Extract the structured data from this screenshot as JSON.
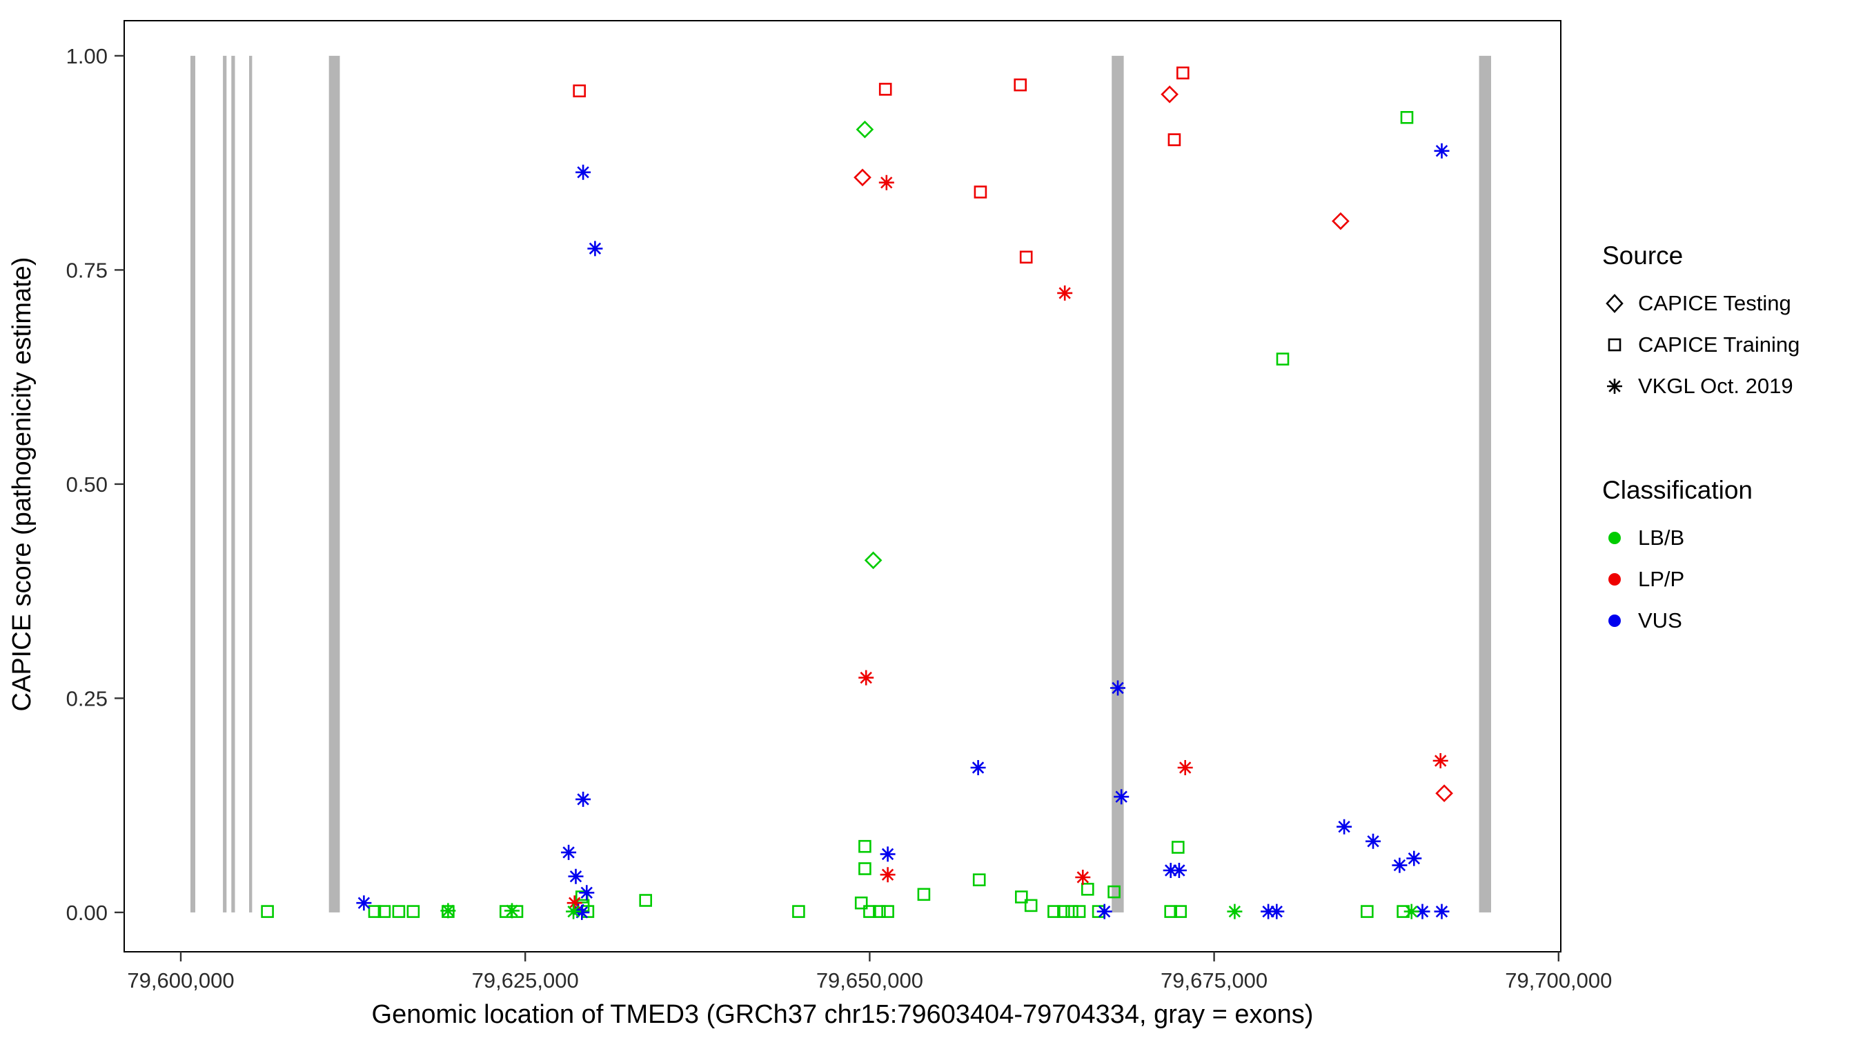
{
  "axes": {
    "x_label": "Genomic location of TMED3 (GRCh37 chr15:79603404-79704334, gray = exons)",
    "y_label": "CAPICE score (pathogenicity estimate)"
  },
  "legend": {
    "source": {
      "title": "Source",
      "items": [
        {
          "label": "CAPICE Testing",
          "shape": "diamond"
        },
        {
          "label": "CAPICE Training",
          "shape": "square"
        },
        {
          "label": "VKGL Oct. 2019",
          "shape": "asterisk"
        }
      ]
    },
    "classification": {
      "title": "Classification",
      "items": [
        {
          "label": "LB/B",
          "color": "#00CC00"
        },
        {
          "label": "LP/P",
          "color": "#EE0000"
        },
        {
          "label": "VUS",
          "color": "#0000EE"
        }
      ]
    }
  },
  "chart_data": {
    "type": "scatter",
    "title": "",
    "xlabel": "Genomic location of TMED3 (GRCh37 chr15:79603404-79704334, gray = exons)",
    "ylabel": "CAPICE score (pathogenicity estimate)",
    "xlim": [
      79595893,
      79700160
    ],
    "ylim": [
      -0.046,
      1.041
    ],
    "grid": false,
    "legend_position": "right",
    "x_ticks": [
      {
        "value": 79600000,
        "label": "79,600,000"
      },
      {
        "value": 79625000,
        "label": "79,625,000"
      },
      {
        "value": 79650000,
        "label": "79,650,000"
      },
      {
        "value": 79675000,
        "label": "79,675,000"
      },
      {
        "value": 79700000,
        "label": "79,700,000"
      }
    ],
    "y_ticks": [
      {
        "value": 0.0,
        "label": "0.00"
      },
      {
        "value": 0.25,
        "label": "0.25"
      },
      {
        "value": 0.5,
        "label": "0.50"
      },
      {
        "value": 0.75,
        "label": "0.75"
      },
      {
        "value": 1.0,
        "label": "1.00"
      }
    ],
    "exon_color": "#b5b5b5",
    "exons": [
      [
        79600700,
        79601050
      ],
      [
        79603060,
        79603320
      ],
      [
        79603670,
        79603930
      ],
      [
        79604960,
        79605180
      ],
      [
        79610750,
        79611540
      ],
      [
        79667570,
        79668440
      ],
      [
        79694230,
        79695100
      ]
    ],
    "shape_by_source": {
      "CAPICE Testing": "diamond",
      "CAPICE Training": "square",
      "VKGL Oct. 2019": "asterisk"
    },
    "color_by_class": {
      "LB/B": "#00CC00",
      "LP/P": "#EE0000",
      "VUS": "#0000EE"
    },
    "points": [
      {
        "x": 79649650,
        "y": 0.914,
        "source": "CAPICE Testing",
        "cls": "LB/B"
      },
      {
        "x": 79650260,
        "y": 0.411,
        "source": "CAPICE Testing",
        "cls": "LB/B"
      },
      {
        "x": 79649480,
        "y": 0.858,
        "source": "CAPICE Testing",
        "cls": "LP/P"
      },
      {
        "x": 79671770,
        "y": 0.955,
        "source": "CAPICE Testing",
        "cls": "LP/P"
      },
      {
        "x": 79684180,
        "y": 0.807,
        "source": "CAPICE Testing",
        "cls": "LP/P"
      },
      {
        "x": 79691700,
        "y": 0.139,
        "source": "CAPICE Testing",
        "cls": "LP/P"
      },
      {
        "x": 79628930,
        "y": 0.959,
        "source": "CAPICE Training",
        "cls": "LP/P"
      },
      {
        "x": 79651140,
        "y": 0.961,
        "source": "CAPICE Training",
        "cls": "LP/P"
      },
      {
        "x": 79658040,
        "y": 0.841,
        "source": "CAPICE Training",
        "cls": "LP/P"
      },
      {
        "x": 79660930,
        "y": 0.966,
        "source": "CAPICE Training",
        "cls": "LP/P"
      },
      {
        "x": 79661360,
        "y": 0.765,
        "source": "CAPICE Training",
        "cls": "LP/P"
      },
      {
        "x": 79672110,
        "y": 0.902,
        "source": "CAPICE Training",
        "cls": "LP/P"
      },
      {
        "x": 79672730,
        "y": 0.98,
        "source": "CAPICE Training",
        "cls": "LP/P"
      },
      {
        "x": 79679980,
        "y": 0.646,
        "source": "CAPICE Training",
        "cls": "LB/B"
      },
      {
        "x": 79688990,
        "y": 0.928,
        "source": "CAPICE Training",
        "cls": "LB/B"
      },
      {
        "x": 79606290,
        "y": 0.001,
        "source": "CAPICE Training",
        "cls": "LB/B"
      },
      {
        "x": 79614070,
        "y": 0.001,
        "source": "CAPICE Training",
        "cls": "LB/B"
      },
      {
        "x": 79614770,
        "y": 0.001,
        "source": "CAPICE Training",
        "cls": "LB/B"
      },
      {
        "x": 79615820,
        "y": 0.001,
        "source": "CAPICE Training",
        "cls": "LB/B"
      },
      {
        "x": 79616870,
        "y": 0.001,
        "source": "CAPICE Training",
        "cls": "LB/B"
      },
      {
        "x": 79619400,
        "y": 0.001,
        "source": "CAPICE Training",
        "cls": "LB/B"
      },
      {
        "x": 79623600,
        "y": 0.001,
        "source": "CAPICE Training",
        "cls": "LB/B"
      },
      {
        "x": 79624390,
        "y": 0.001,
        "source": "CAPICE Training",
        "cls": "LB/B"
      },
      {
        "x": 79629110,
        "y": 0.018,
        "source": "CAPICE Training",
        "cls": "LB/B"
      },
      {
        "x": 79629200,
        "y": 0.008,
        "source": "CAPICE Training",
        "cls": "LB/B"
      },
      {
        "x": 79629540,
        "y": 0.001,
        "source": "CAPICE Training",
        "cls": "LB/B"
      },
      {
        "x": 79633740,
        "y": 0.014,
        "source": "CAPICE Training",
        "cls": "LB/B"
      },
      {
        "x": 79644840,
        "y": 0.001,
        "source": "CAPICE Training",
        "cls": "LB/B"
      },
      {
        "x": 79649390,
        "y": 0.011,
        "source": "CAPICE Training",
        "cls": "LB/B"
      },
      {
        "x": 79649650,
        "y": 0.077,
        "source": "CAPICE Training",
        "cls": "LB/B"
      },
      {
        "x": 79649650,
        "y": 0.051,
        "source": "CAPICE Training",
        "cls": "LB/B"
      },
      {
        "x": 79650000,
        "y": 0.001,
        "source": "CAPICE Training",
        "cls": "LB/B"
      },
      {
        "x": 79650700,
        "y": 0.001,
        "source": "CAPICE Training",
        "cls": "LB/B"
      },
      {
        "x": 79651310,
        "y": 0.001,
        "source": "CAPICE Training",
        "cls": "LB/B"
      },
      {
        "x": 79653930,
        "y": 0.021,
        "source": "CAPICE Training",
        "cls": "LB/B"
      },
      {
        "x": 79657950,
        "y": 0.038,
        "source": "CAPICE Training",
        "cls": "LB/B"
      },
      {
        "x": 79661010,
        "y": 0.018,
        "source": "CAPICE Training",
        "cls": "LB/B"
      },
      {
        "x": 79661710,
        "y": 0.008,
        "source": "CAPICE Training",
        "cls": "LB/B"
      },
      {
        "x": 79663370,
        "y": 0.001,
        "source": "CAPICE Training",
        "cls": "LB/B"
      },
      {
        "x": 79664070,
        "y": 0.001,
        "source": "CAPICE Training",
        "cls": "LB/B"
      },
      {
        "x": 79664680,
        "y": 0.001,
        "source": "CAPICE Training",
        "cls": "LB/B"
      },
      {
        "x": 79665210,
        "y": 0.001,
        "source": "CAPICE Training",
        "cls": "LB/B"
      },
      {
        "x": 79665820,
        "y": 0.027,
        "source": "CAPICE Training",
        "cls": "LB/B"
      },
      {
        "x": 79666610,
        "y": 0.001,
        "source": "CAPICE Training",
        "cls": "LB/B"
      },
      {
        "x": 79667740,
        "y": 0.024,
        "source": "CAPICE Training",
        "cls": "LB/B"
      },
      {
        "x": 79671850,
        "y": 0.001,
        "source": "CAPICE Training",
        "cls": "LB/B"
      },
      {
        "x": 79672380,
        "y": 0.076,
        "source": "CAPICE Training",
        "cls": "LB/B"
      },
      {
        "x": 79672550,
        "y": 0.001,
        "source": "CAPICE Training",
        "cls": "LB/B"
      },
      {
        "x": 79686100,
        "y": 0.001,
        "source": "CAPICE Training",
        "cls": "LB/B"
      },
      {
        "x": 79688720,
        "y": 0.001,
        "source": "CAPICE Training",
        "cls": "LB/B"
      },
      {
        "x": 79629200,
        "y": 0.864,
        "source": "VKGL Oct. 2019",
        "cls": "VUS"
      },
      {
        "x": 79630070,
        "y": 0.775,
        "source": "VKGL Oct. 2019",
        "cls": "VUS"
      },
      {
        "x": 79691520,
        "y": 0.889,
        "source": "VKGL Oct. 2019",
        "cls": "VUS"
      },
      {
        "x": 79668010,
        "y": 0.262,
        "source": "VKGL Oct. 2019",
        "cls": "VUS"
      },
      {
        "x": 79657870,
        "y": 0.169,
        "source": "VKGL Oct. 2019",
        "cls": "VUS"
      },
      {
        "x": 79668270,
        "y": 0.135,
        "source": "VKGL Oct. 2019",
        "cls": "VUS"
      },
      {
        "x": 79629200,
        "y": 0.132,
        "source": "VKGL Oct. 2019",
        "cls": "VUS"
      },
      {
        "x": 79684440,
        "y": 0.1,
        "source": "VKGL Oct. 2019",
        "cls": "VUS"
      },
      {
        "x": 79686540,
        "y": 0.083,
        "source": "VKGL Oct. 2019",
        "cls": "VUS"
      },
      {
        "x": 79628150,
        "y": 0.07,
        "source": "VKGL Oct. 2019",
        "cls": "VUS"
      },
      {
        "x": 79628670,
        "y": 0.042,
        "source": "VKGL Oct. 2019",
        "cls": "VUS"
      },
      {
        "x": 79651310,
        "y": 0.068,
        "source": "VKGL Oct. 2019",
        "cls": "VUS"
      },
      {
        "x": 79671850,
        "y": 0.049,
        "source": "VKGL Oct. 2019",
        "cls": "VUS"
      },
      {
        "x": 79672460,
        "y": 0.049,
        "source": "VKGL Oct. 2019",
        "cls": "VUS"
      },
      {
        "x": 79689510,
        "y": 0.063,
        "source": "VKGL Oct. 2019",
        "cls": "VUS"
      },
      {
        "x": 79688460,
        "y": 0.055,
        "source": "VKGL Oct. 2019",
        "cls": "VUS"
      },
      {
        "x": 79613290,
        "y": 0.011,
        "source": "VKGL Oct. 2019",
        "cls": "VUS"
      },
      {
        "x": 79629460,
        "y": 0.023,
        "source": "VKGL Oct. 2019",
        "cls": "VUS"
      },
      {
        "x": 79628850,
        "y": 0.003,
        "source": "VKGL Oct. 2019",
        "cls": "VUS"
      },
      {
        "x": 79629110,
        "y": 0.0,
        "source": "VKGL Oct. 2019",
        "cls": "VUS"
      },
      {
        "x": 79667040,
        "y": 0.001,
        "source": "VKGL Oct. 2019",
        "cls": "VUS"
      },
      {
        "x": 79678930,
        "y": 0.001,
        "source": "VKGL Oct. 2019",
        "cls": "VUS"
      },
      {
        "x": 79679540,
        "y": 0.001,
        "source": "VKGL Oct. 2019",
        "cls": "VUS"
      },
      {
        "x": 79690120,
        "y": 0.001,
        "source": "VKGL Oct. 2019",
        "cls": "VUS"
      },
      {
        "x": 79691520,
        "y": 0.001,
        "source": "VKGL Oct. 2019",
        "cls": "VUS"
      },
      {
        "x": 79651220,
        "y": 0.852,
        "source": "VKGL Oct. 2019",
        "cls": "LP/P"
      },
      {
        "x": 79664160,
        "y": 0.723,
        "source": "VKGL Oct. 2019",
        "cls": "LP/P"
      },
      {
        "x": 79649740,
        "y": 0.274,
        "source": "VKGL Oct. 2019",
        "cls": "LP/P"
      },
      {
        "x": 79672900,
        "y": 0.169,
        "source": "VKGL Oct. 2019",
        "cls": "LP/P"
      },
      {
        "x": 79691430,
        "y": 0.177,
        "source": "VKGL Oct. 2019",
        "cls": "LP/P"
      },
      {
        "x": 79651310,
        "y": 0.044,
        "source": "VKGL Oct. 2019",
        "cls": "LP/P"
      },
      {
        "x": 79665470,
        "y": 0.041,
        "source": "VKGL Oct. 2019",
        "cls": "LP/P"
      },
      {
        "x": 79628580,
        "y": 0.011,
        "source": "VKGL Oct. 2019",
        "cls": "LP/P"
      },
      {
        "x": 79619400,
        "y": 0.002,
        "source": "VKGL Oct. 2019",
        "cls": "LB/B"
      },
      {
        "x": 79624040,
        "y": 0.002,
        "source": "VKGL Oct. 2019",
        "cls": "LB/B"
      },
      {
        "x": 79628500,
        "y": 0.001,
        "source": "VKGL Oct. 2019",
        "cls": "LB/B"
      },
      {
        "x": 79676490,
        "y": 0.001,
        "source": "VKGL Oct. 2019",
        "cls": "LB/B"
      },
      {
        "x": 79689330,
        "y": 0.001,
        "source": "VKGL Oct. 2019",
        "cls": "LB/B"
      }
    ]
  }
}
